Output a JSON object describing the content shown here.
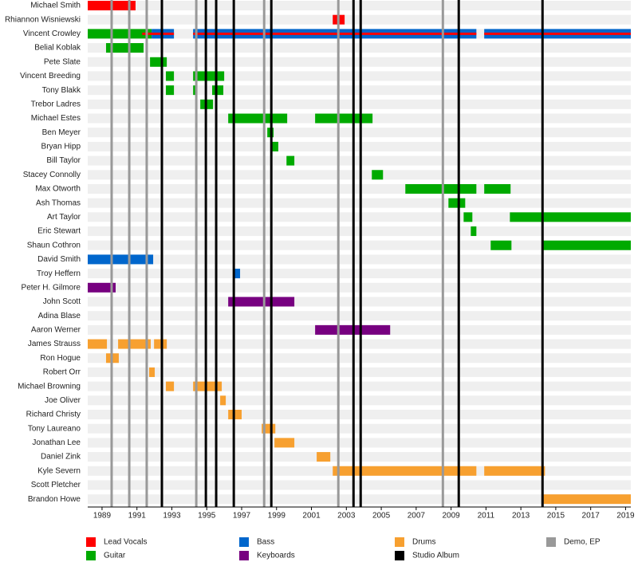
{
  "chart_data": {
    "type": "timeline",
    "xlim": [
      1988.18,
      2019.3
    ],
    "xticks": [
      1989,
      1991,
      1993,
      1995,
      1997,
      1999,
      2001,
      2003,
      2005,
      2007,
      2009,
      2011,
      2013,
      2015,
      2017,
      2019
    ],
    "roles": [
      {
        "name": "Lead Vocals",
        "color": "#ff0000"
      },
      {
        "name": "Guitar",
        "color": "#00aa00"
      },
      {
        "name": "Bass",
        "color": "#0066cc"
      },
      {
        "name": "Keyboards",
        "color": "#770080"
      },
      {
        "name": "Drums",
        "color": "#f7a030"
      }
    ],
    "events": [
      {
        "name": "Studio Album",
        "color": "#000000",
        "x": [
          1992.43,
          1994.95,
          1995.54,
          1996.55,
          1998.7,
          2003.41,
          2003.82,
          2009.44,
          2014.24
        ]
      },
      {
        "name": "Demo, EP",
        "color": "#999999",
        "x": [
          1989.55,
          1990.56,
          1991.56,
          1994.4,
          1998.29,
          2002.54,
          2008.53
        ]
      }
    ],
    "members": [
      {
        "name": "Michael Smith",
        "bars": [
          {
            "role": 0,
            "start": 1988.18,
            "end": 1990.92
          }
        ]
      },
      {
        "name": "Rhiannon Wisniewski",
        "bars": [
          {
            "role": 0,
            "start": 2002.22,
            "end": 2002.9
          }
        ]
      },
      {
        "name": "Vincent Crowley",
        "bars": [
          {
            "role": 1,
            "start": 1988.18,
            "end": 1991.84
          },
          {
            "role": 2,
            "start": 1991.84,
            "end": 1993.12
          },
          {
            "role": 2,
            "start": 1994.22,
            "end": 2010.45
          },
          {
            "role": 2,
            "start": 2010.9,
            "end": 2019.3
          },
          {
            "role": 0,
            "start": 1991.3,
            "end": 1993.12
          },
          {
            "role": 0,
            "start": 1994.22,
            "end": 2010.45
          },
          {
            "role": 0,
            "start": 2010.9,
            "end": 2019.3
          }
        ]
      },
      {
        "name": "Belial Koblak",
        "bars": [
          {
            "role": 1,
            "start": 1989.23,
            "end": 1991.38
          }
        ]
      },
      {
        "name": "Pete Slate",
        "bars": [
          {
            "role": 1,
            "start": 1991.75,
            "end": 1992.71
          }
        ]
      },
      {
        "name": "Vincent Breeding",
        "bars": [
          {
            "role": 1,
            "start": 1992.66,
            "end": 1993.12
          },
          {
            "role": 1,
            "start": 1994.22,
            "end": 1996.0
          }
        ]
      },
      {
        "name": "Tony Blakk",
        "bars": [
          {
            "role": 1,
            "start": 1992.66,
            "end": 1993.12
          },
          {
            "role": 1,
            "start": 1994.22,
            "end": 1994.45
          },
          {
            "role": 1,
            "start": 1995.31,
            "end": 1995.95
          }
        ]
      },
      {
        "name": "Trebor Ladres",
        "bars": [
          {
            "role": 1,
            "start": 1994.63,
            "end": 1995.36
          }
        ]
      },
      {
        "name": "Michael Estes",
        "bars": [
          {
            "role": 1,
            "start": 1996.23,
            "end": 1999.61
          },
          {
            "role": 1,
            "start": 2001.21,
            "end": 2004.5
          }
        ]
      },
      {
        "name": "Ben Meyer",
        "bars": [
          {
            "role": 1,
            "start": 1998.47,
            "end": 1998.83
          }
        ]
      },
      {
        "name": "Bryan Hipp",
        "bars": [
          {
            "role": 1,
            "start": 1998.74,
            "end": 1999.1
          }
        ]
      },
      {
        "name": "Bill Taylor",
        "bars": [
          {
            "role": 1,
            "start": 1999.57,
            "end": 2000.02
          }
        ]
      },
      {
        "name": "Stacey Connolly",
        "bars": [
          {
            "role": 1,
            "start": 2004.46,
            "end": 2005.1
          }
        ]
      },
      {
        "name": "Max Otworth",
        "bars": [
          {
            "role": 1,
            "start": 2006.38,
            "end": 2010.45
          },
          {
            "role": 1,
            "start": 2010.9,
            "end": 2012.41
          }
        ]
      },
      {
        "name": "Ash Thomas",
        "bars": [
          {
            "role": 1,
            "start": 2008.85,
            "end": 2009.81
          }
        ]
      },
      {
        "name": "Art Taylor",
        "bars": [
          {
            "role": 1,
            "start": 2009.72,
            "end": 2010.22
          },
          {
            "role": 1,
            "start": 2012.37,
            "end": 2019.3
          }
        ]
      },
      {
        "name": "Eric Stewart",
        "bars": [
          {
            "role": 1,
            "start": 2010.13,
            "end": 2010.45
          }
        ]
      },
      {
        "name": "Shaun Cothron",
        "bars": [
          {
            "role": 1,
            "start": 2011.27,
            "end": 2012.46
          },
          {
            "role": 1,
            "start": 2014.29,
            "end": 2019.3
          }
        ]
      },
      {
        "name": "David Smith",
        "bars": [
          {
            "role": 2,
            "start": 1988.18,
            "end": 1991.93
          }
        ]
      },
      {
        "name": "Troy Heffern",
        "bars": [
          {
            "role": 2,
            "start": 1996.59,
            "end": 1996.91
          }
        ]
      },
      {
        "name": "Peter H. Gilmore",
        "bars": [
          {
            "role": 3,
            "start": 1988.18,
            "end": 1989.78
          }
        ]
      },
      {
        "name": "John Scott",
        "bars": [
          {
            "role": 3,
            "start": 1996.23,
            "end": 2000.02
          }
        ]
      },
      {
        "name": "Adina Blase",
        "bars": []
      },
      {
        "name": "Aaron Werner",
        "bars": [
          {
            "role": 3,
            "start": 2001.21,
            "end": 2005.51
          }
        ]
      },
      {
        "name": "James Strauss",
        "bars": [
          {
            "role": 4,
            "start": 1988.18,
            "end": 1989.28
          },
          {
            "role": 4,
            "start": 1989.92,
            "end": 1991.79
          },
          {
            "role": 4,
            "start": 1991.98,
            "end": 1992.71
          }
        ]
      },
      {
        "name": "Ron Hogue",
        "bars": [
          {
            "role": 4,
            "start": 1989.23,
            "end": 1989.96
          }
        ]
      },
      {
        "name": "Robert Orr",
        "bars": [
          {
            "role": 4,
            "start": 1991.7,
            "end": 1992.02
          }
        ]
      },
      {
        "name": "Michael Browning",
        "bars": [
          {
            "role": 4,
            "start": 1992.66,
            "end": 1993.12
          },
          {
            "role": 4,
            "start": 1994.22,
            "end": 1995.86
          }
        ]
      },
      {
        "name": "Joe Oliver",
        "bars": [
          {
            "role": 4,
            "start": 1995.77,
            "end": 1996.09
          }
        ]
      },
      {
        "name": "Richard Christy",
        "bars": [
          {
            "role": 4,
            "start": 1996.23,
            "end": 1997.0
          }
        ]
      },
      {
        "name": "Tony Laureano",
        "bars": [
          {
            "role": 4,
            "start": 1998.15,
            "end": 1998.93
          }
        ]
      },
      {
        "name": "Jonathan Lee",
        "bars": [
          {
            "role": 4,
            "start": 1998.88,
            "end": 2000.02
          }
        ]
      },
      {
        "name": "Daniel Zink",
        "bars": [
          {
            "role": 4,
            "start": 2001.3,
            "end": 2002.08
          }
        ]
      },
      {
        "name": "Kyle Severn",
        "bars": [
          {
            "role": 4,
            "start": 2002.22,
            "end": 2010.45
          },
          {
            "role": 4,
            "start": 2010.9,
            "end": 2014.38
          }
        ]
      },
      {
        "name": "Scott Pletcher",
        "bars": []
      },
      {
        "name": "Brandon Howe",
        "bars": [
          {
            "role": 4,
            "start": 2014.29,
            "end": 2019.3
          }
        ]
      }
    ]
  }
}
